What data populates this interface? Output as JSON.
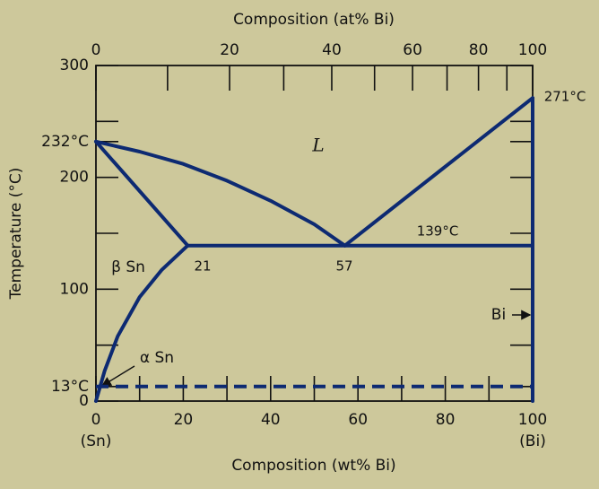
{
  "chart_data": {
    "type": "line",
    "x_label": "Composition (wt% Bi)",
    "x2_label": "Composition (at% Bi)",
    "y_label": "Temperature (°C)",
    "xlim": [
      0,
      100
    ],
    "ylim": [
      0,
      300
    ],
    "xticks": [
      0,
      20,
      40,
      60,
      80,
      100
    ],
    "x_minor_ticks": [
      10,
      30,
      50,
      70,
      90
    ],
    "x_end_labels": [
      "(Sn)",
      "(Bi)"
    ],
    "x2ticks": [
      {
        "value": 0,
        "label": "0"
      },
      {
        "value": 30.6,
        "label": "20"
      },
      {
        "value": 54.0,
        "label": "40"
      },
      {
        "value": 72.5,
        "label": "60"
      },
      {
        "value": 87.6,
        "label": "80"
      },
      {
        "value": 100,
        "label": "100"
      }
    ],
    "x2_minor_ticks": [
      16.4,
      43.0,
      63.8,
      80.4,
      94.1
    ],
    "yticks": [
      0,
      {
        "value": 13,
        "label": "13°C"
      },
      100,
      200,
      {
        "value": 232,
        "label": "232°C"
      },
      300
    ],
    "y_minor_ticks": [
      50,
      150,
      250
    ],
    "color": "#0d2a72",
    "series": [
      {
        "x": [
          0,
          10,
          20,
          30,
          40,
          50,
          57
        ],
        "values": [
          232,
          223,
          212,
          197,
          179,
          158,
          139
        ]
      },
      {
        "x": [
          57,
          100
        ],
        "values": [
          139,
          271
        ]
      },
      {
        "x": [
          0,
          21
        ],
        "values": [
          232,
          139
        ]
      },
      {
        "x": [
          21,
          100
        ],
        "values": [
          139,
          139
        ]
      },
      {
        "x": [
          21,
          15,
          10,
          5,
          2,
          0
        ],
        "values": [
          139,
          117,
          93,
          58,
          27,
          0
        ]
      },
      {
        "x": [
          100,
          100
        ],
        "values": [
          0,
          271
        ]
      },
      {
        "x": [
          0,
          100
        ],
        "values": [
          13,
          13
        ],
        "dashed": true
      }
    ],
    "annotations": {
      "liquid": "L",
      "beta": "β Sn",
      "alpha": "α Sn",
      "eutectic_left": 21,
      "eutectic": 57,
      "eutectic_temp": "139°C",
      "bi_melt": "271°C",
      "bi": "Bi"
    }
  }
}
